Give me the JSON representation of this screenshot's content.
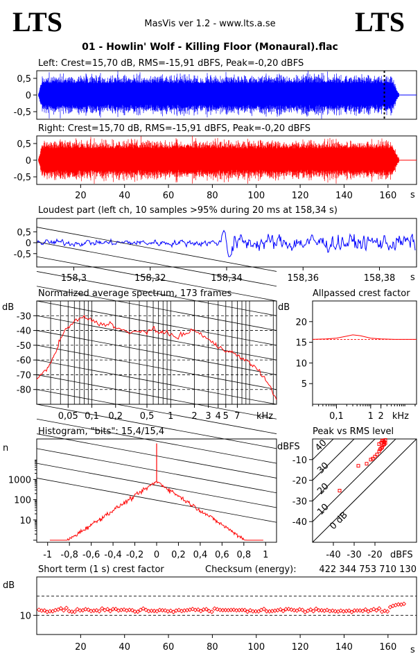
{
  "header": {
    "logo_left": "LTS",
    "logo_right": "LTS",
    "app_title": "MasVis ver 1.2 - www.lts.a.se",
    "track_title": "01 - Howlin' Wolf - Killing Floor (Monaural).flac"
  },
  "colors": {
    "left": "#0000ff",
    "right": "#ff0000",
    "axis": "#000000"
  },
  "chart_data": [
    {
      "id": "left_waveform",
      "type": "area",
      "title": "Left: Crest=15,70 dB, RMS=-15,91 dBFS, Peak=-0,20 dBFS",
      "crest_db": 15.7,
      "rms_dbfs": -15.91,
      "peak_dbfs": -0.2,
      "yticks": [
        "0,5",
        "0",
        "-0,5"
      ],
      "ylim": [
        -1,
        1
      ],
      "xlim": [
        0,
        173
      ],
      "duration_s": 165,
      "marker_x_s": 158.34
    },
    {
      "id": "right_waveform",
      "type": "area",
      "title": "Right: Crest=15,70 dB, RMS=-15,91 dBFS, Peak=-0,20 dBFS",
      "crest_db": 15.7,
      "rms_dbfs": -15.91,
      "peak_dbfs": -0.2,
      "yticks": [
        "0,5",
        "0",
        "-0,5"
      ],
      "xticks": [
        "20",
        "40",
        "60",
        "80",
        "100",
        "120",
        "140",
        "160"
      ],
      "xtick_values": [
        20,
        40,
        60,
        80,
        100,
        120,
        140,
        160
      ],
      "xunit": "s",
      "ylim": [
        -1,
        1
      ],
      "xlim": [
        0,
        173
      ],
      "duration_s": 165
    },
    {
      "id": "loudest_part",
      "type": "line",
      "title": "Loudest part (left  ch, 10 samples >95% during 20 ms at 158,34 s)",
      "yticks": [
        "0,5",
        "0",
        "-0,5"
      ],
      "xticks": [
        "158,3",
        "158,32",
        "158,34",
        "158,36",
        "158,38"
      ],
      "xtick_values": [
        158.3,
        158.32,
        158.34,
        158.36,
        158.38
      ],
      "xunit": "s",
      "xlim": [
        158.2903,
        158.3897
      ],
      "ylim": [
        -1,
        1
      ]
    },
    {
      "id": "spectrum",
      "type": "line",
      "title": "Normalized average spectrum, 173 frames",
      "ylabel": "dB",
      "yticks": [
        "-30",
        "-40",
        "-50",
        "-60",
        "-70",
        "-80"
      ],
      "ytick_values": [
        -30,
        -40,
        -50,
        -60,
        -70,
        -80
      ],
      "xticks": [
        "0,05",
        "0,1",
        "0,2",
        "0,5",
        "1",
        "2",
        "3",
        "4",
        "5",
        "7"
      ],
      "xtick_values": [
        0.05,
        0.1,
        0.2,
        0.5,
        1,
        2,
        3,
        4,
        5,
        7
      ],
      "xunit": "kHz",
      "xscale": "log",
      "xlim": [
        0.02,
        22
      ],
      "ylim": [
        -90,
        -20
      ],
      "x": [
        0.02,
        0.025,
        0.03,
        0.035,
        0.04,
        0.05,
        0.06,
        0.08,
        0.1,
        0.13,
        0.17,
        0.2,
        0.25,
        0.3,
        0.4,
        0.5,
        0.6,
        0.7,
        0.8,
        1.0,
        1.2,
        1.5,
        2.0,
        2.5,
        3.0,
        3.5,
        4.0,
        5.0,
        6.0,
        7.0,
        8.0,
        10.0,
        12.0,
        15.0,
        18.0,
        22.0
      ],
      "values": [
        -73,
        -68,
        -62,
        -55,
        -45,
        -38,
        -34,
        -31,
        -33,
        -36,
        -35,
        -38,
        -40,
        -42,
        -40,
        -41,
        -39,
        -42,
        -40,
        -43,
        -45,
        -42,
        -40,
        -43,
        -46,
        -49,
        -51,
        -53,
        -55,
        -57,
        -59,
        -62,
        -65,
        -71,
        -78,
        -87
      ]
    },
    {
      "id": "allpassed_crest",
      "type": "line",
      "title": "Allpassed crest factor",
      "ylabel": "dB",
      "yticks": [
        "20",
        "15",
        "10",
        "5"
      ],
      "ytick_values": [
        20,
        15,
        10,
        5
      ],
      "xticks": [
        "0,1",
        "1",
        "2",
        "kHz"
      ],
      "xtick_values": [
        0.1,
        1,
        2
      ],
      "xscale": "log",
      "xlim": [
        0.02,
        22
      ],
      "ylim": [
        0,
        25
      ],
      "reference_db": 15.7,
      "x": [
        0.02,
        0.05,
        0.1,
        0.2,
        0.3,
        0.5,
        1,
        2,
        5,
        10,
        22
      ],
      "values": [
        15.7,
        15.8,
        16.0,
        16.5,
        16.8,
        16.6,
        16.0,
        15.8,
        15.7,
        15.7,
        15.7
      ]
    },
    {
      "id": "histogram",
      "type": "line",
      "title": "Histogram, \"bits\": 15,4/15,4",
      "ylabel": "n",
      "yscale": "log",
      "yticks": [
        "1000",
        "100",
        "10"
      ],
      "ytick_values": [
        1000,
        100,
        10
      ],
      "xticks": [
        "-1",
        "-0,8",
        "-0,6",
        "-0,4",
        "-0,2",
        "0",
        "0,2",
        "0,4",
        "0,6",
        "0,8",
        "1"
      ],
      "xtick_values": [
        -1,
        -0.8,
        -0.6,
        -0.4,
        -0.2,
        0,
        0.2,
        0.4,
        0.6,
        0.8,
        1
      ],
      "xlim": [
        -1.1,
        1.1
      ],
      "ylim": [
        1,
        100000
      ],
      "x": [
        -0.98,
        -0.9,
        -0.8,
        -0.7,
        -0.6,
        -0.5,
        -0.4,
        -0.3,
        -0.2,
        -0.1,
        0,
        0.1,
        0.2,
        0.3,
        0.4,
        0.5,
        0.6,
        0.7,
        0.8,
        0.9,
        0.98
      ],
      "values": [
        1,
        2,
        8,
        20,
        40,
        80,
        160,
        280,
        450,
        640,
        800,
        640,
        450,
        280,
        160,
        80,
        40,
        20,
        8,
        2,
        1
      ],
      "peak_at_zero": 60000
    },
    {
      "id": "peak_vs_rms",
      "type": "scatter",
      "title": "Peak vs RMS level",
      "ylabel": "dBFS",
      "xunit": "dBFS",
      "yticks": [
        "-10",
        "-20",
        "-30",
        "-40"
      ],
      "ytick_values": [
        -10,
        -20,
        -30,
        -40
      ],
      "xticks": [
        "-40",
        "-30",
        "-20"
      ],
      "xtick_values": [
        -40,
        -30,
        -20
      ],
      "diagonal_labels": [
        "40",
        "30",
        "20",
        "10",
        "0 dB"
      ],
      "xlim": [
        -50,
        0
      ],
      "ylim": [
        -50,
        0
      ],
      "points": [
        [
          -37,
          -25
        ],
        [
          -28,
          -13
        ],
        [
          -24,
          -12
        ],
        [
          -22,
          -10
        ],
        [
          -21,
          -9.5
        ],
        [
          -20,
          -8.5
        ],
        [
          -19,
          -7.5
        ],
        [
          -18,
          -6
        ],
        [
          -17.5,
          -5
        ],
        [
          -17,
          -4.5
        ],
        [
          -16.5,
          -4
        ],
        [
          -16,
          -3
        ],
        [
          -15.5,
          -2.5
        ],
        [
          -15,
          -2
        ],
        [
          -15.5,
          -1.5
        ],
        [
          -16,
          -1
        ],
        [
          -15,
          -0.5
        ],
        [
          -16.5,
          -0.8
        ],
        [
          -17,
          -1.8
        ],
        [
          -18,
          -2.5
        ]
      ]
    },
    {
      "id": "short_term_crest",
      "type": "scatter",
      "title": "Short term (1 s) crest factor",
      "ylabel": "dB",
      "yticks": [
        "10"
      ],
      "ytick_values": [
        10
      ],
      "xticks": [
        "20",
        "40",
        "60",
        "80",
        "100",
        "120",
        "140",
        "160"
      ],
      "xtick_values": [
        20,
        40,
        60,
        80,
        100,
        120,
        140,
        160
      ],
      "xunit": "s",
      "xlim": [
        0,
        173
      ],
      "ylim": [
        5,
        20
      ],
      "ref_lines_db": [
        10,
        15
      ],
      "checksum_label": "Checksum (energy):",
      "checksum_value": "422 344 753 710 130"
    }
  ]
}
